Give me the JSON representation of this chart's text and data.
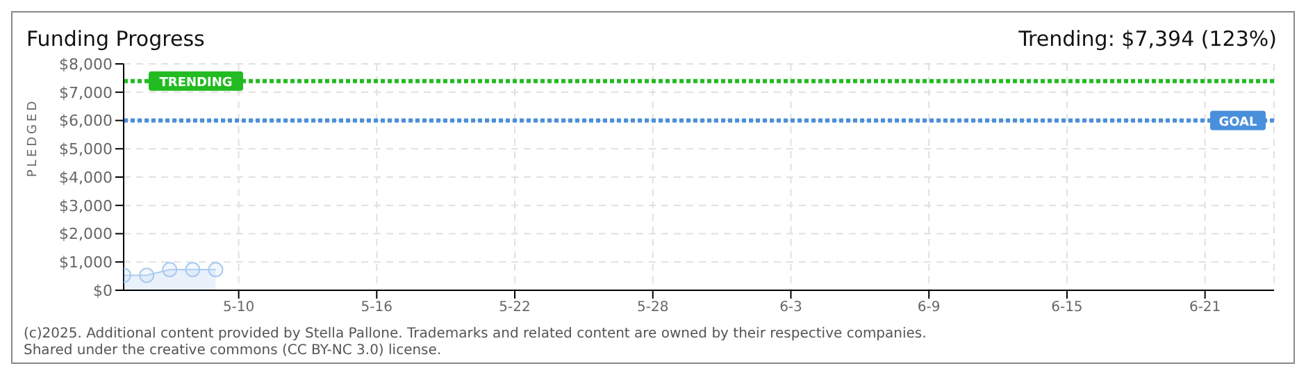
{
  "chart_data": {
    "type": "area",
    "title": "Funding Progress",
    "subtitle": "Trending: $7,394 (123%)",
    "ylabel": "PLEDGED",
    "x": [
      "--05-05",
      "--05-06",
      "--05-07",
      "--05-08",
      "--05-09"
    ],
    "series": [
      {
        "color": "#a9c9ee",
        "values": [
          530,
          530,
          730,
          730,
          730
        ]
      }
    ],
    "xlim": [
      "--05-05",
      "--06-24"
    ],
    "xticks": [
      {
        "value": "--05-10",
        "label": "5-10"
      },
      {
        "value": "--05-16",
        "label": "5-16"
      },
      {
        "value": "--05-22",
        "label": "5-22"
      },
      {
        "value": "--05-28",
        "label": "5-28"
      },
      {
        "value": "--06-03",
        "label": "6-3"
      },
      {
        "value": "--06-09",
        "label": "6-9"
      },
      {
        "value": "--06-15",
        "label": "6-15"
      },
      {
        "value": "--06-21",
        "label": "6-21"
      }
    ],
    "ylim": [
      0,
      8000
    ],
    "yticks": [
      {
        "value": 0,
        "label": "$0"
      },
      {
        "value": 1000,
        "label": "$1,000"
      },
      {
        "value": 2000,
        "label": "$2,000"
      },
      {
        "value": 3000,
        "label": "$3,000"
      },
      {
        "value": 4000,
        "label": "$4,000"
      },
      {
        "value": 5000,
        "label": "$5,000"
      },
      {
        "value": 6000,
        "label": "$6,000"
      },
      {
        "value": 7000,
        "label": "$7,000"
      },
      {
        "value": 8000,
        "label": "$8,000"
      }
    ],
    "ref_lines": [
      {
        "axis": "y",
        "value": 7394,
        "label": "TRENDING",
        "color": "#22bb22",
        "line_style": "dotted"
      },
      {
        "axis": "y",
        "value": 6000,
        "label": "GOAL",
        "color": "#4a8fdc",
        "line_style": "dotted"
      }
    ],
    "grid": true,
    "marker": "circle",
    "annotations": [
      "(c)2025. Additional content provided by Stella Pallone. Trademarks and related content are owned by their respective companies.",
      "Shared under the creative commons (CC BY-NC 3.0) license."
    ]
  }
}
